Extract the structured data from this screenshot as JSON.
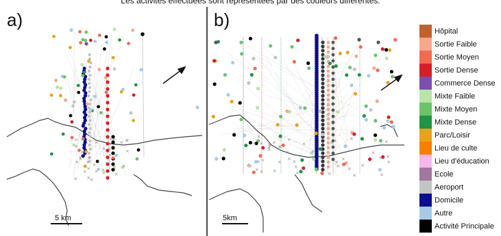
{
  "caption": "Les activités effectuées sont représentées par des couleurs différentes.",
  "panels": [
    {
      "label": "a)",
      "scale_label": "5 km"
    },
    {
      "label": "b)",
      "scale_label": "5km"
    }
  ],
  "legend": [
    {
      "label": "Hôpital",
      "color": "#c0622e"
    },
    {
      "label": "Sortie Faible",
      "color": "#f4a98c"
    },
    {
      "label": "Sortie Moyen",
      "color": "#f26a4f"
    },
    {
      "label": "Sortie Dense",
      "color": "#d42027"
    },
    {
      "label": "Commerce Dense",
      "color": "#7a4fb0"
    },
    {
      "label": "Mixte Faible",
      "color": "#b9e3a8"
    },
    {
      "label": "Mixte Moyen",
      "color": "#6cc36a"
    },
    {
      "label": "Mixte Dense",
      "color": "#229347"
    },
    {
      "label": "Parc/Loisir",
      "color": "#e8a21c"
    },
    {
      "label": "Lieu de culte",
      "color": "#f77f00"
    },
    {
      "label": "Lieu d'éducation",
      "color": "#f6b6ee"
    },
    {
      "label": "Ecole",
      "color": "#a1779e"
    },
    {
      "label": "Aeroport",
      "color": "#c4c4c4"
    },
    {
      "label": "Domicile",
      "color": "#0b0d8c"
    },
    {
      "label": "Autre",
      "color": "#a7cbe6"
    },
    {
      "label": "Activité Principale",
      "color": "#000000"
    }
  ]
}
